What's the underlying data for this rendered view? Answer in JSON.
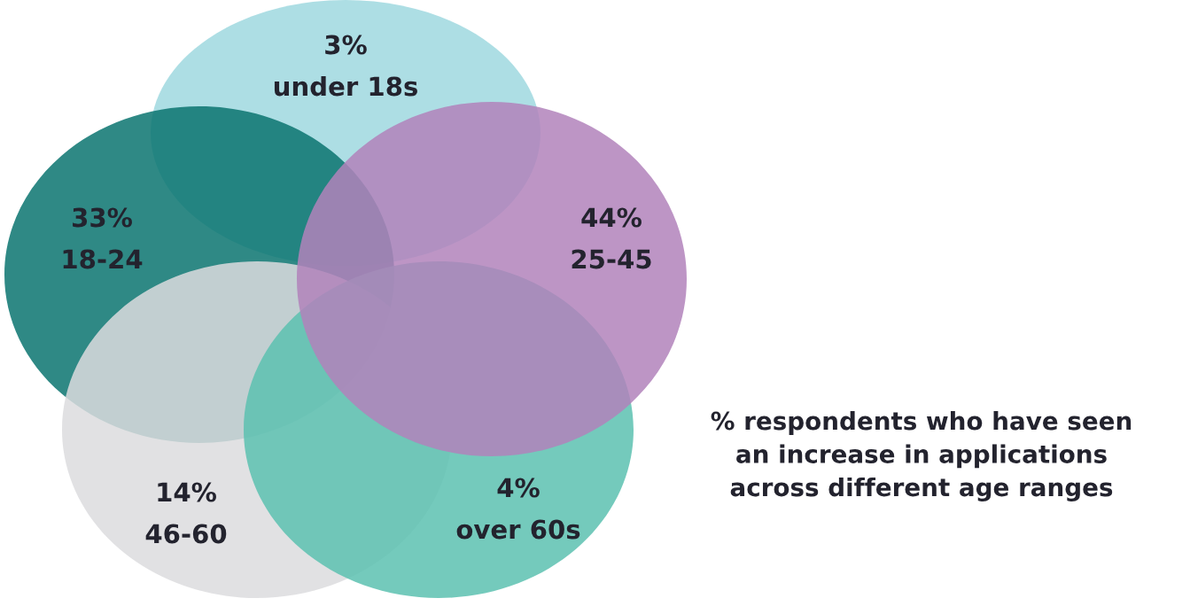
{
  "chart_data": {
    "type": "other",
    "categories": [
      "under 18s",
      "18-24",
      "46-60",
      "over 60s",
      "25-45"
    ],
    "values": [
      3,
      33,
      14,
      4,
      44
    ],
    "value_labels": [
      "3%",
      "33%",
      "14%",
      "4%",
      "44%"
    ],
    "colors": [
      "#9fd8df",
      "#0a7470",
      "#dcdcde",
      "#5cc1b0",
      "#b283bb"
    ],
    "annotations": [
      "% respondents who have seen\nan increase in applications\nacross different age ranges"
    ]
  }
}
